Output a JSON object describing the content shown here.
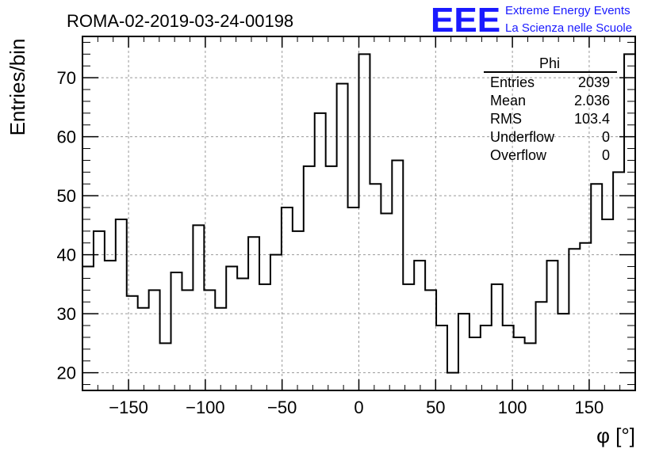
{
  "header": {
    "title": "ROMA-02-2019-03-24-00198",
    "logo_mark": "EEE",
    "logo_line1": "Extreme Energy Events",
    "logo_line2": "La Scienza nelle Scuole",
    "logo_color": "#1a1aff"
  },
  "stats_box": {
    "name": "Phi",
    "rows": [
      {
        "label": "Entries",
        "value": "2039"
      },
      {
        "label": "Mean",
        "value": "2.036"
      },
      {
        "label": "RMS",
        "value": "103.4"
      },
      {
        "label": "Underflow",
        "value": "0"
      },
      {
        "label": "Overflow",
        "value": "0"
      }
    ]
  },
  "chart_data": {
    "type": "bar",
    "style": "step-histogram",
    "xlabel": "φ [°]",
    "ylabel": "Entries/bin",
    "xlim": [
      -180,
      180
    ],
    "ylim": [
      17,
      77
    ],
    "bin_width": 7.2,
    "xticks": [
      -150,
      -100,
      -50,
      0,
      50,
      100,
      150
    ],
    "yticks": [
      20,
      30,
      40,
      50,
      60,
      70
    ],
    "grid": true,
    "values": [
      38,
      44,
      39,
      46,
      33,
      31,
      34,
      25,
      37,
      34,
      45,
      34,
      31,
      38,
      36,
      43,
      35,
      40,
      48,
      44,
      55,
      64,
      55,
      69,
      48,
      74,
      52,
      47,
      56,
      35,
      39,
      34,
      28,
      20,
      30,
      26,
      28,
      35,
      28,
      26,
      25,
      32,
      39,
      30,
      41,
      42,
      52,
      46,
      54,
      74
    ]
  }
}
